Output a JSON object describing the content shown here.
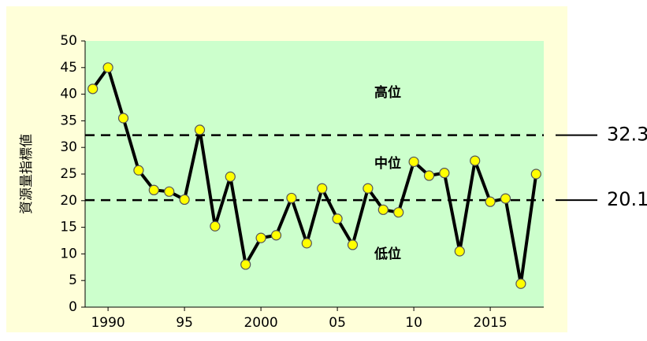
{
  "chart_data": {
    "type": "line",
    "y_label": "資源量指標値",
    "x": [
      1989,
      1990,
      1991,
      1992,
      1993,
      1994,
      1995,
      1996,
      1997,
      1998,
      1999,
      2000,
      2001,
      2002,
      2003,
      2004,
      2005,
      2006,
      2007,
      2008,
      2009,
      2010,
      2011,
      2012,
      2013,
      2014,
      2015,
      2016,
      2017,
      2018
    ],
    "series": [
      {
        "color": "#000000",
        "marker_color": "#ffff00",
        "values": [
          41,
          45,
          35.5,
          25.7,
          22,
          21.7,
          20.2,
          33.3,
          15.2,
          24.5,
          8,
          13,
          13.5,
          20.5,
          12,
          22.3,
          16.6,
          11.7,
          22.3,
          18.3,
          17.8,
          27.3,
          24.7,
          25.2,
          10.5,
          27.5,
          19.8,
          20.4,
          4.4,
          25
        ]
      }
    ],
    "xlim": [
      1988.5,
      2018.5
    ],
    "xticks": [
      1990,
      {
        "value": 1995,
        "label": "95"
      },
      2000,
      {
        "value": 2005,
        "label": "05"
      },
      {
        "value": 2010,
        "label": "10"
      },
      2015
    ],
    "ylim": [
      0,
      50
    ],
    "yticks": [
      0,
      5,
      10,
      15,
      20,
      25,
      30,
      35,
      40,
      45,
      50
    ],
    "reference_lines": [
      {
        "value": 32.3
      },
      {
        "value": 20.1
      }
    ],
    "annotations": [
      "高位",
      "中位",
      "低位"
    ],
    "plot_color": "#ccffcc",
    "background_color": "#ffffd9"
  }
}
